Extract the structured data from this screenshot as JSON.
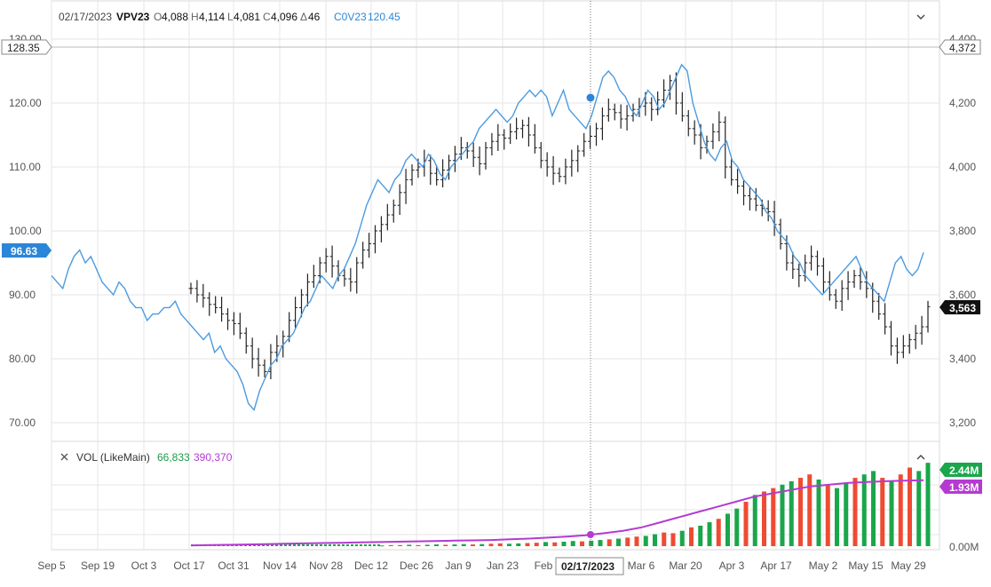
{
  "legend": {
    "date": "02/17/2023",
    "symbol": "VPV23",
    "o_label": "O",
    "o_value": "4,088",
    "h_label": "H",
    "h_value": "4,114",
    "l_label": "L",
    "l_value": "4,081",
    "c_label": "C",
    "c_value": "4,096",
    "chg_label": "Δ",
    "chg_value": "46",
    "overlay_symbol": "C0V23",
    "overlay_value": "120.45",
    "collapse_icon": "chevron-down-icon"
  },
  "volume_legend": {
    "close_icon": "close-icon",
    "label": "VOL (LikeMain)",
    "value1": "66,833",
    "value2": "390,370",
    "collapse_icon": "chevron-up-icon"
  },
  "left_axis": {
    "ticks": [
      "70.00",
      "80.00",
      "90.00",
      "100.00",
      "110.00",
      "120.00",
      "130.00"
    ],
    "min": 70,
    "max": 130
  },
  "right_axis": {
    "ticks": [
      "3,200",
      "3,400",
      "3,600",
      "3,800",
      "4,000",
      "4,200",
      "4,400"
    ],
    "min": 3200,
    "max": 4400
  },
  "volume_axis": {
    "ticks": [
      "0.00M"
    ],
    "max": 2.6
  },
  "x_axis": {
    "labels": [
      "Sep 5",
      "Sep 19",
      "Oct 3",
      "Oct 17",
      "Oct 31",
      "Nov 14",
      "Nov 28",
      "Dec 12",
      "Dec 26",
      "Jan 9",
      "Jan 23",
      "Feb",
      "02/17/2023",
      "Mar 6",
      "Mar 20",
      "Apr 3",
      "Apr 17",
      "May 2",
      "May 15",
      "May 29"
    ]
  },
  "badges": {
    "left_top": "128.35",
    "left_last": "96.63",
    "right_top": "4,372",
    "right_last": "3,563",
    "vol_green": "2.44M",
    "vol_purple": "1.93M"
  },
  "colors": {
    "overlay_line": "#4c9be0",
    "overlay_badge": "#2b86d9",
    "bars": "#222222",
    "vol_up": "#1aa64a",
    "vol_down": "#ef4b32",
    "vol_avg": "#b43bd0",
    "grid": "#e5e5e5",
    "legend_green": "#1b9a4a",
    "legend_purple": "#b43bd0"
  },
  "chart_data": {
    "type": "line",
    "series": [
      {
        "name": "C0V23",
        "axis": "left",
        "values": [
          93,
          92,
          91,
          94,
          96,
          97,
          95,
          96,
          94,
          92,
          91,
          90,
          92,
          91,
          89,
          88,
          88,
          86,
          87,
          87,
          88,
          88,
          89,
          87,
          86,
          85,
          84,
          83,
          84,
          81,
          82,
          80,
          79,
          78,
          76,
          73,
          72,
          75,
          77,
          79,
          80,
          82,
          83,
          84,
          86,
          88,
          89,
          91,
          93,
          92,
          91,
          93,
          94,
          96,
          98,
          101,
          104,
          106,
          108,
          107,
          106,
          108,
          109,
          111,
          112,
          111,
          110,
          112,
          111,
          109,
          108,
          110,
          111,
          112,
          113,
          114,
          116,
          117,
          118,
          119,
          118,
          117,
          118,
          120,
          121,
          122,
          121,
          122,
          121,
          118,
          120,
          122,
          119,
          118,
          117,
          116,
          118,
          121,
          124,
          125,
          124,
          122,
          121,
          119,
          118,
          120,
          122,
          121,
          119,
          120,
          122,
          124,
          126,
          125,
          120,
          117,
          114,
          112,
          111,
          113,
          114,
          111,
          110,
          108,
          107,
          106,
          105,
          103,
          102,
          100,
          99,
          98,
          96,
          95,
          93,
          92,
          91,
          90,
          91,
          92,
          93,
          94,
          95,
          96,
          94,
          92,
          91,
          90,
          89,
          92,
          95,
          96,
          94,
          93,
          94,
          96.63
        ]
      }
    ],
    "ohlc_bars_axis": "right",
    "ohlc_bars_close": [
      3620,
      3600,
      3590,
      3570,
      3560,
      3540,
      3520,
      3510,
      3480,
      3440,
      3400,
      3380,
      3360,
      3420,
      3440,
      3470,
      3520,
      3560,
      3600,
      3640,
      3660,
      3700,
      3720,
      3690,
      3660,
      3650,
      3640,
      3700,
      3740,
      3760,
      3800,
      3820,
      3850,
      3880,
      3920,
      3960,
      3990,
      4000,
      4020,
      3980,
      3960,
      3990,
      4020,
      4040,
      4060,
      4050,
      4030,
      4010,
      4060,
      4080,
      4100,
      4090,
      4110,
      4120,
      4130,
      4100,
      4060,
      4020,
      4000,
      3980,
      3970,
      4000,
      4020,
      4050,
      4080,
      4096,
      4120,
      4160,
      4180,
      4170,
      4150,
      4160,
      4180,
      4190,
      4200,
      4180,
      4210,
      4240,
      4270,
      4200,
      4160,
      4120,
      4100,
      4060,
      4080,
      4110,
      4140,
      4000,
      3960,
      3940,
      3910,
      3900,
      3880,
      3870,
      3860,
      3820,
      3760,
      3700,
      3680,
      3660,
      3700,
      3720,
      3690,
      3640,
      3600,
      3580,
      3620,
      3640,
      3660,
      3640,
      3620,
      3580,
      3540,
      3500,
      3440,
      3420,
      3440,
      3460,
      3480,
      3500,
      3563
    ],
    "volume": {
      "unit": "M",
      "bars": [
        0.02,
        0.03,
        0.03,
        0.04,
        0.03,
        0.04,
        0.05,
        0.04,
        0.05,
        0.06,
        0.05,
        0.06,
        0.07,
        0.08,
        0.07,
        0.08,
        0.09,
        0.1,
        0.12,
        0.11,
        0.13,
        0.15,
        0.14,
        0.16,
        0.18,
        0.2,
        0.22,
        0.25,
        0.28,
        0.3,
        0.35,
        0.4,
        0.38,
        0.45,
        0.55,
        0.6,
        0.7,
        0.8,
        0.95,
        1.1,
        1.3,
        1.5,
        1.6,
        1.7,
        1.8,
        1.9,
        2.0,
        2.1,
        1.95,
        1.8,
        1.7,
        1.85,
        2.0,
        2.1,
        2.2,
        2.0,
        1.9,
        2.1,
        2.3,
        2.2,
        2.44
      ],
      "avg": [
        0.02,
        0.03,
        0.04,
        0.05,
        0.06,
        0.07,
        0.08,
        0.09,
        0.1,
        0.11,
        0.12,
        0.13,
        0.14,
        0.15,
        0.16,
        0.17,
        0.18,
        0.2,
        0.22,
        0.25,
        0.28,
        0.32,
        0.38,
        0.45,
        0.55,
        0.7,
        0.85,
        1.0,
        1.15,
        1.3,
        1.45,
        1.55,
        1.65,
        1.75,
        1.8,
        1.85,
        1.88,
        1.9,
        1.92,
        1.93
      ]
    },
    "ylim_left": [
      70,
      130
    ],
    "ylim_right": [
      3200,
      4400
    ],
    "grid": true
  }
}
